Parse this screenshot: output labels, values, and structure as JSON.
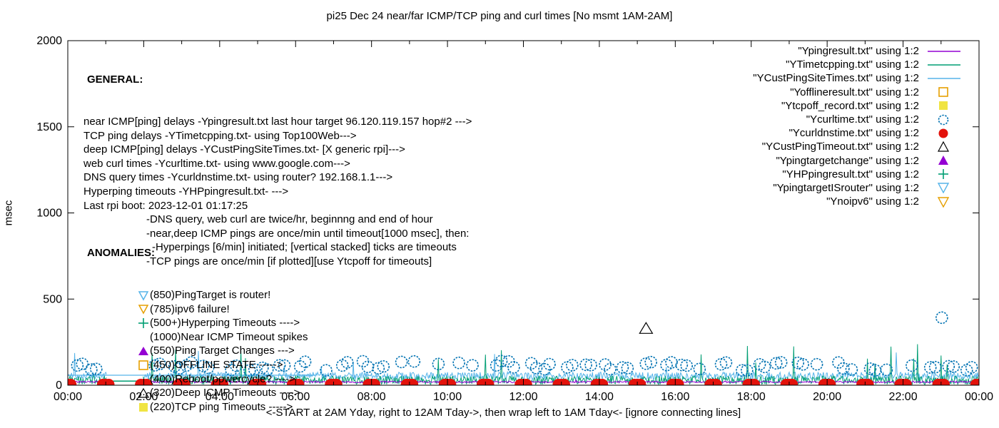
{
  "chart_data": {
    "type": "line+scatter",
    "title": "pi25 Dec 24  near/far ICMP/TCP ping and curl times [No msmt 1AM-2AM]",
    "ylabel": "msec",
    "xcaption": "<-START at 2AM Yday, right to 12AM Tday->, then wrap left to 1AM Tday<- [ignore connecting lines]",
    "ylim": [
      0,
      2000
    ],
    "y_ticks": [
      0,
      500,
      1000,
      1500,
      2000
    ],
    "xlim_hours": [
      0,
      24
    ],
    "x_major_ticks": [
      {
        "hour": 0,
        "label": "00:00"
      },
      {
        "hour": 2,
        "label": "02:00"
      },
      {
        "hour": 4,
        "label": "04:00"
      },
      {
        "hour": 6,
        "label": "06:00"
      },
      {
        "hour": 8,
        "label": "08:00"
      },
      {
        "hour": 10,
        "label": "10:00"
      },
      {
        "hour": 12,
        "label": "12:00"
      },
      {
        "hour": 14,
        "label": "14:00"
      },
      {
        "hour": 16,
        "label": "16:00"
      },
      {
        "hour": 18,
        "label": "18:00"
      },
      {
        "hour": 20,
        "label": "20:00"
      },
      {
        "hour": 22,
        "label": "22:00"
      },
      {
        "hour": 24,
        "label": "00:00"
      }
    ],
    "grid": false,
    "no_measurement_gap_hours": [
      1.03,
      1.97
    ],
    "colors": {
      "purple": "#9400D3",
      "green": "#009E73",
      "skyblue": "#56B4E9",
      "orange": "#E69F00",
      "yellow": "#F0E442",
      "blue": "#0072B2",
      "red": "#E3120B",
      "black": "#000000"
    },
    "legend_position": "top-right",
    "legend": [
      {
        "label": "\"Ypingresult.txt\" using 1:2",
        "sample": "line",
        "color": "#9400D3"
      },
      {
        "label": "\"YTimetcpping.txt\" using 1:2",
        "sample": "line",
        "color": "#009E73"
      },
      {
        "label": "\"YCustPingSiteTimes.txt\" using 1:2",
        "sample": "line",
        "color": "#56B4E9"
      },
      {
        "label": "\"Yofflineresult.txt\" using 1:2",
        "sample": "square_open",
        "color": "#E69F00"
      },
      {
        "label": "\"Ytcpoff_record.txt\" using 1:2",
        "sample": "square_filled",
        "color": "#F0E442"
      },
      {
        "label": "\"Ycurltime.txt\" using 1:2",
        "sample": "circle_open",
        "color": "#0072B2"
      },
      {
        "label": "\"Ycurldnstime.txt\" using 1:2",
        "sample": "circle_filled",
        "color": "#E3120B"
      },
      {
        "label": "\"YCustPingTimeout.txt\" using 1:2",
        "sample": "tri_up_open",
        "color": "#000000"
      },
      {
        "label": "\"Ypingtargetchange\" using 1:2",
        "sample": "tri_up_filled",
        "color": "#9400D3"
      },
      {
        "label": "\"YHPpingresult.txt\" using 1:2",
        "sample": "plus",
        "color": "#009E73"
      },
      {
        "label": "\"YpingtargetISrouter\" using 1:2",
        "sample": "tri_down_open",
        "color": "#56B4E9"
      },
      {
        "label": "\"Ynoipv6\" using 1:2",
        "sample": "tri_down_open",
        "color": "#E69F00"
      }
    ],
    "series": {
      "near_icmp_line": {
        "name": "Ypingresult.txt",
        "color": "#9400D3",
        "baseline_ms": 14,
        "jitter_ms": 10,
        "spike_prob": 0.004,
        "spike_max_ms": 32
      },
      "tcp_ping_line": {
        "name": "YTimetcpping.txt",
        "color": "#009E73",
        "baseline_ms": 4,
        "jitter_ms": 50,
        "spike_prob": 0.016,
        "spike_max_ms": 255,
        "gap_flat_ms": 24
      },
      "deep_icmp_line": {
        "name": "YCustPingSiteTimes.txt",
        "color": "#56B4E9",
        "baseline_ms": 32,
        "jitter_ms": 44,
        "spike_prob": 0.01,
        "spike_max_ms": 205,
        "connect_line": {
          "from_hour": 0,
          "to_hour": 6.5,
          "ms": 58
        }
      },
      "curl_circles": {
        "name": "Ycurltime.txt",
        "color": "#0072B2",
        "clusters_per_hour": 2,
        "typical_ms": [
          85,
          140
        ],
        "skip_hour": 1,
        "outliers": [
          {
            "hour": 23.02,
            "ms": 392
          }
        ]
      },
      "dns_dots": {
        "name": "Ycurldnstime.txt",
        "color": "#E3120B",
        "hours": [
          0,
          1,
          2,
          3,
          4,
          5,
          6,
          7,
          8,
          9,
          10,
          11,
          12,
          13,
          14,
          15,
          16,
          17,
          18,
          19,
          20,
          21,
          22,
          23,
          24
        ],
        "typical_ms": 4
      },
      "deep_timeouts": {
        "name": "YCustPingTimeout.txt",
        "color": "#000000",
        "points": [
          {
            "hour": 15.23,
            "ms": 330
          }
        ]
      },
      "offline_squares": {
        "name": "Yofflineresult.txt",
        "color": "#E69F00",
        "points": []
      },
      "tcpoff_squares": {
        "name": "Ytcpoff_record.txt",
        "color": "#F0E442",
        "points": []
      },
      "pingtarget_triangles": {
        "name": "Ypingtargetchange",
        "color": "#9400D3",
        "points": []
      },
      "hyperping_ticks": {
        "name": "YHPpingresult.txt",
        "color": "#009E73",
        "points": []
      }
    },
    "seed": 42,
    "annotations": {
      "general": {
        "heading": "GENERAL:",
        "lines": [
          {
            "text": "near ICMP[ping] delays -Ypingresult.txt last hour target 96.120.119.157 hop#2 --->",
            "indent": 0
          },
          {
            "text": "TCP ping delays -YTimetcpping.txt- using Top100Web--->",
            "indent": 0
          },
          {
            "text": "deep ICMP[ping] delays -YCustPingSiteTimes.txt- [X generic rpi]--->",
            "indent": 0
          },
          {
            "text": "web curl times -Ycurltime.txt- using www.google.com--->",
            "indent": 0
          },
          {
            "text": "DNS query times -Ycurldnstime.txt- using router? 192.168.1.1--->",
            "indent": 0
          },
          {
            "text": "Hyperping timeouts -YHPpingresult.txt- --->",
            "indent": 0
          },
          {
            "text": "Last rpi boot: 2023-12-01 01:17:25",
            "indent": 0
          },
          {
            "text": "-DNS query, web curl are twice/hr, beginnng and end of hour",
            "indent": 1
          },
          {
            "text": "-near,deep ICMP pings are once/min until timeout[1000 msec], then:",
            "indent": 1
          },
          {
            "text": "-Hyperpings [6/min] initiated; [vertical stacked] ticks are timeouts",
            "indent": 2
          },
          {
            "text": "-TCP pings are once/min [if plotted][use Ytcpoff for timeouts]",
            "indent": 1
          }
        ]
      },
      "anomalies": {
        "heading": "ANOMALIES:",
        "items": [
          {
            "icon": "tri_down_open",
            "color": "#56B4E9",
            "text": "(850)PingTarget is router!"
          },
          {
            "icon": "tri_down_open",
            "color": "#E69F00",
            "text": "(785)ipv6 failure!"
          },
          {
            "icon": "plus",
            "color": "#009E73",
            "text": "(500+)Hyperping Timeouts ---->"
          },
          {
            "icon": "none",
            "color": "",
            "text": "(1000)Near ICMP Timeout spikes"
          },
          {
            "icon": "tri_up_filled",
            "color": "#9400D3",
            "text": "(550)Ping Target Changes --->"
          },
          {
            "icon": "square_open",
            "color": "#E69F00",
            "text": "(450)OFFLINE STATE ----->"
          },
          {
            "icon": "none",
            "color": "",
            "text": "(400)Reboot/powercycle? ---->"
          },
          {
            "icon": "tri_up_open",
            "color": "#000000",
            "text": "(320)Deep ICMP Timeouts ---->"
          },
          {
            "icon": "square_filled",
            "color": "#F0E442",
            "text": "(220)TCP ping Timeouts ----->"
          }
        ]
      }
    }
  }
}
